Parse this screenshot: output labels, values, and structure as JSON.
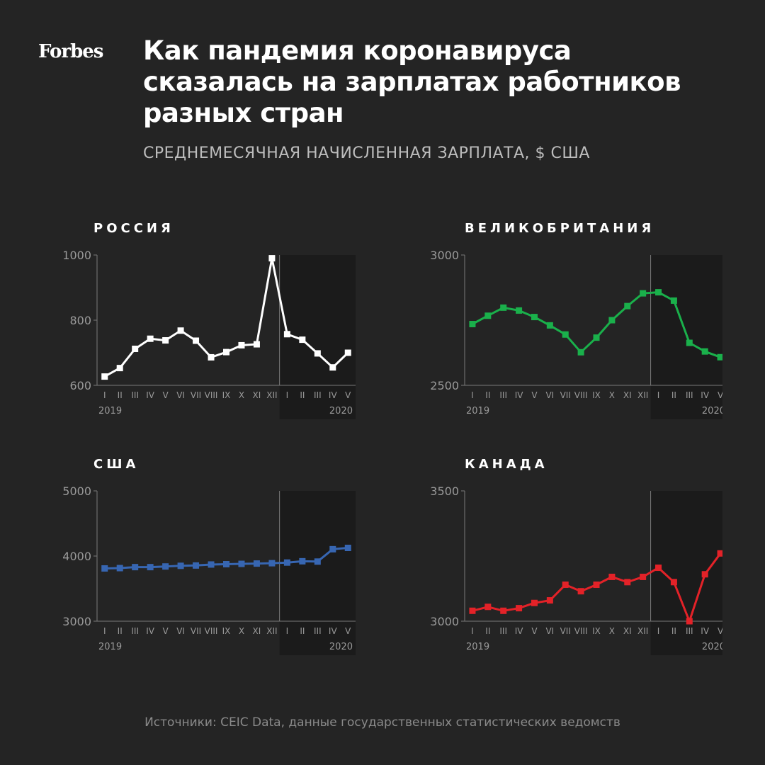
{
  "header": {
    "logo": "Forbes",
    "title": "Как пандемия коронавируса\nсказалась на зарплатах работников\nразных стран",
    "subtitle": "СРЕДНЕМЕСЯЧНАЯ НАЧИСЛЕННАЯ ЗАРПЛАТА, $ США"
  },
  "footer": {
    "source": "Источники: CEIC Data, данные государственных статистических ведомств"
  },
  "chart_data": [
    {
      "type": "line",
      "title": "РОССИЯ",
      "color": "#ffffff",
      "categories": [
        "I",
        "II",
        "III",
        "IV",
        "V",
        "VI",
        "VII",
        "VIII",
        "IX",
        "X",
        "XI",
        "XII",
        "I",
        "II",
        "III",
        "IV",
        "V"
      ],
      "year_labels": [
        "2019",
        "2020"
      ],
      "ylim": [
        600,
        1000
      ],
      "yticks": [
        "600",
        "800",
        "1000"
      ],
      "values": [
        627,
        653,
        712,
        743,
        738,
        768,
        737,
        686,
        702,
        723,
        726,
        990,
        757,
        740,
        698,
        655,
        700
      ]
    },
    {
      "type": "line",
      "title": "ВЕЛИКОБРИТАНИЯ",
      "color": "#1ab04b",
      "categories": [
        "I",
        "II",
        "III",
        "IV",
        "V",
        "VI",
        "VII",
        "VIII",
        "IX",
        "X",
        "XI",
        "XII",
        "I",
        "II",
        "III",
        "IV",
        "V"
      ],
      "year_labels": [
        "2019",
        "2020"
      ],
      "ylim": [
        2500,
        3000
      ],
      "yticks": [
        "2500",
        "3000"
      ],
      "values": [
        2735,
        2767,
        2798,
        2787,
        2762,
        2730,
        2695,
        2627,
        2683,
        2750,
        2804,
        2853,
        2857,
        2825,
        2663,
        2630,
        2608
      ]
    },
    {
      "type": "line",
      "title": "США",
      "color": "#3766b2",
      "categories": [
        "I",
        "II",
        "III",
        "IV",
        "V",
        "VI",
        "VII",
        "VIII",
        "IX",
        "X",
        "XI",
        "XII",
        "I",
        "II",
        "III",
        "IV",
        "V"
      ],
      "year_labels": [
        "2019",
        "2020"
      ],
      "ylim": [
        3000,
        5000
      ],
      "yticks": [
        "3000",
        "4000",
        "5000"
      ],
      "values": [
        3810,
        3815,
        3830,
        3830,
        3840,
        3850,
        3855,
        3870,
        3875,
        3880,
        3885,
        3890,
        3900,
        3920,
        3915,
        4105,
        4125
      ]
    },
    {
      "type": "line",
      "title": "КАНАДА",
      "color": "#e32228",
      "categories": [
        "I",
        "II",
        "III",
        "IV",
        "V",
        "VI",
        "VII",
        "VIII",
        "IX",
        "X",
        "XI",
        "XII",
        "I",
        "II",
        "III",
        "IV",
        "V"
      ],
      "year_labels": [
        "2019",
        "2020"
      ],
      "ylim": [
        3000,
        3500
      ],
      "yticks": [
        "3000",
        "3500"
      ],
      "values": [
        3040,
        3055,
        3040,
        3050,
        3070,
        3080,
        3140,
        3115,
        3140,
        3170,
        3150,
        3170,
        3205,
        3150,
        3000,
        3180,
        3260
      ]
    }
  ]
}
